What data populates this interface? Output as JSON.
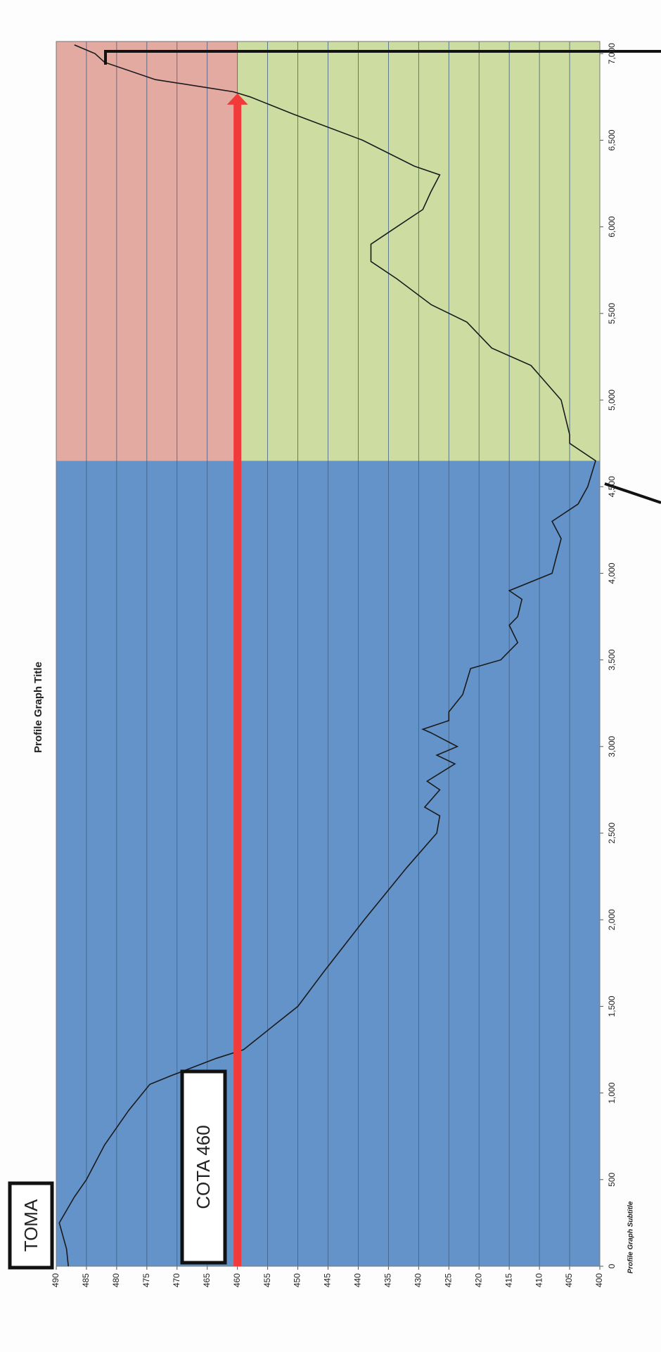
{
  "chart_data": {
    "type": "line",
    "title": "Profile Graph Title",
    "subtitle": "Profile Graph Subtitle",
    "x": [
      0,
      100,
      250,
      400,
      500,
      700,
      900,
      1050,
      1100,
      1200,
      1250,
      1400,
      1500,
      1700,
      2000,
      2300,
      2500,
      2600,
      2650,
      2750,
      2800,
      2900,
      2950,
      3000,
      3080,
      3100,
      3150,
      3200,
      3300,
      3450,
      3500,
      3600,
      3700,
      3750,
      3850,
      3900,
      4000,
      4200,
      4300,
      4400,
      4500,
      4650,
      4750,
      4800,
      5000,
      5200,
      5300,
      5450,
      5550,
      5700,
      5800,
      5900,
      6000,
      6100,
      6200,
      6300,
      6350,
      6500,
      6650,
      6750,
      6780,
      6850,
      6950,
      7000,
      7050
    ],
    "values": [
      488,
      488.3,
      489.5,
      487,
      485,
      482,
      478,
      474.5,
      471,
      463.5,
      459,
      453.6,
      450,
      445.7,
      439,
      432,
      427,
      426.5,
      429,
      426.5,
      428.6,
      424,
      427,
      423.6,
      428,
      429.3,
      425,
      425,
      422.7,
      421.4,
      416.4,
      413.6,
      415,
      413.6,
      412.9,
      415,
      407.9,
      406.4,
      407.9,
      403.6,
      402,
      400.7,
      405,
      405,
      406.4,
      411.4,
      417.9,
      422,
      427.9,
      433.6,
      437.9,
      437.9,
      433.6,
      429.3,
      428,
      426.5,
      430.7,
      439.3,
      450.7,
      457.9,
      460.7,
      473.6,
      482,
      483.6,
      487
    ],
    "color": "#1a1a1a",
    "xlim": [
      0,
      7070
    ],
    "ylim": [
      400,
      490
    ],
    "xticks": [
      0,
      500,
      {
        "value": 1000,
        "label": "1,000"
      },
      {
        "value": 1500,
        "label": "1,500"
      },
      {
        "value": 2000,
        "label": "2,000"
      },
      {
        "value": 2500,
        "label": "2,500"
      },
      {
        "value": 3000,
        "label": "3,000"
      },
      {
        "value": 3500,
        "label": "3,500"
      },
      {
        "value": 4000,
        "label": "4,000"
      },
      {
        "value": 4500,
        "label": "4,500"
      },
      {
        "value": 5000,
        "label": "5,000"
      },
      {
        "value": 5500,
        "label": "5,500"
      },
      {
        "value": 6000,
        "label": "6,000"
      },
      {
        "value": 6500,
        "label": "6,500"
      },
      {
        "value": 7000,
        "label": "7,000"
      }
    ],
    "yticks": [
      400,
      405,
      410,
      415,
      420,
      425,
      430,
      435,
      440,
      445,
      450,
      455,
      460,
      465,
      470,
      475,
      480,
      485,
      490
    ],
    "grid": true,
    "bands": [
      {
        "x": [
          0,
          4650
        ],
        "y": [
          400,
          490
        ],
        "color": "#6393c8"
      },
      {
        "x": [
          4650,
          7070
        ],
        "y": [
          460,
          490
        ],
        "color": "#e3aaa2"
      },
      {
        "x": [
          4650,
          7070
        ],
        "y": [
          400,
          460
        ],
        "color": "#cddda2"
      }
    ],
    "arrow": {
      "x": [
        0,
        6770
      ],
      "y": 460,
      "color": "#f23a3a"
    },
    "annotations": [
      "TOMA",
      "COTA 460"
    ]
  }
}
